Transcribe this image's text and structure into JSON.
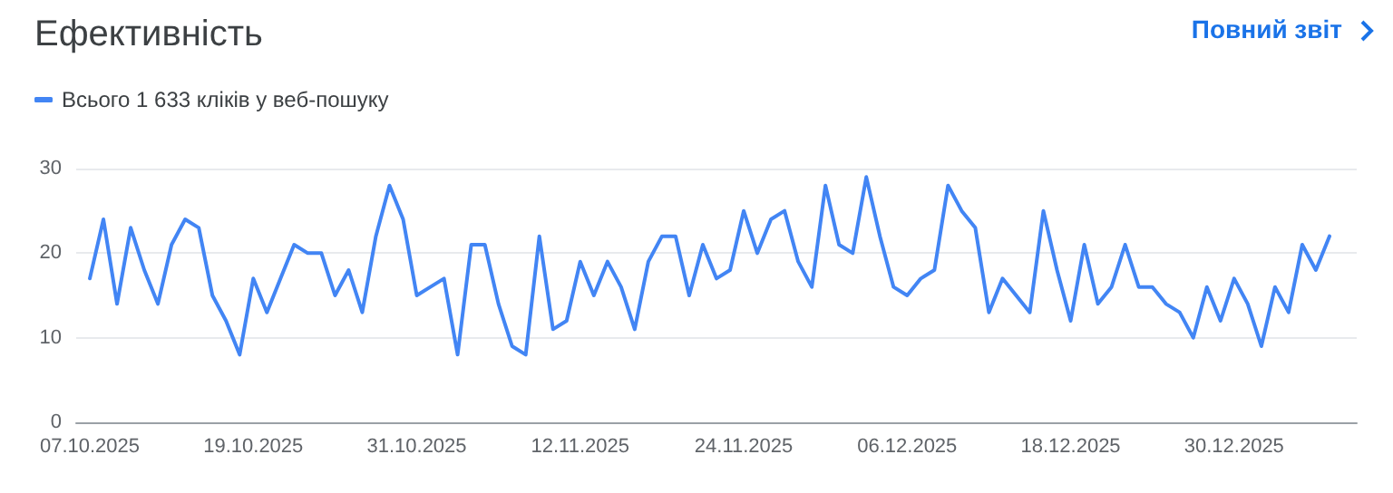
{
  "chart_data": {
    "type": "line",
    "title": "Ефективність",
    "annotations": [
      "Повний звіт"
    ],
    "x": [
      "2025-10-07",
      "2025-10-08",
      "2025-10-09",
      "2025-10-10",
      "2025-10-11",
      "2025-10-12",
      "2025-10-13",
      "2025-10-14",
      "2025-10-15",
      "2025-10-16",
      "2025-10-17",
      "2025-10-18",
      "2025-10-19",
      "2025-10-20",
      "2025-10-21",
      "2025-10-22",
      "2025-10-23",
      "2025-10-24",
      "2025-10-25",
      "2025-10-26",
      "2025-10-27",
      "2025-10-28",
      "2025-10-29",
      "2025-10-30",
      "2025-10-31",
      "2025-11-01",
      "2025-11-02",
      "2025-11-03",
      "2025-11-04",
      "2025-11-05",
      "2025-11-06",
      "2025-11-07",
      "2025-11-08",
      "2025-11-09",
      "2025-11-10",
      "2025-11-11",
      "2025-11-12",
      "2025-11-13",
      "2025-11-14",
      "2025-11-15",
      "2025-11-16",
      "2025-11-17",
      "2025-11-18",
      "2025-11-19",
      "2025-11-20",
      "2025-11-21",
      "2025-11-22",
      "2025-11-23",
      "2025-11-24",
      "2025-11-25",
      "2025-11-26",
      "2025-11-27",
      "2025-11-28",
      "2025-11-29",
      "2025-11-30",
      "2025-12-01",
      "2025-12-02",
      "2025-12-03",
      "2025-12-04",
      "2025-12-05",
      "2025-12-06",
      "2025-12-07",
      "2025-12-08",
      "2025-12-09",
      "2025-12-10",
      "2025-12-11",
      "2025-12-12",
      "2025-12-13",
      "2025-12-14",
      "2025-12-15",
      "2025-12-16",
      "2025-12-17",
      "2025-12-18",
      "2025-12-19",
      "2025-12-20",
      "2025-12-21",
      "2025-12-22",
      "2025-12-23",
      "2025-12-24",
      "2025-12-25",
      "2025-12-26",
      "2025-12-27",
      "2025-12-28",
      "2025-12-29",
      "2025-12-30",
      "2025-12-31",
      "2026-01-01",
      "2026-01-02",
      "2026-01-03",
      "2026-01-04",
      "2026-01-05",
      "2026-01-06"
    ],
    "series": [
      {
        "name": "Всього 1 633 кліків у веб-пошуку",
        "color": "#4285f4",
        "values": [
          17,
          24,
          14,
          23,
          18,
          14,
          21,
          24,
          23,
          15,
          12,
          8,
          17,
          13,
          17,
          21,
          20,
          20,
          15,
          18,
          13,
          22,
          28,
          24,
          15,
          16,
          17,
          8,
          21,
          21,
          14,
          9,
          8,
          22,
          11,
          12,
          19,
          15,
          19,
          16,
          11,
          19,
          22,
          22,
          15,
          21,
          17,
          18,
          25,
          20,
          24,
          25,
          19,
          16,
          28,
          21,
          20,
          29,
          22,
          16,
          15,
          17,
          18,
          28,
          25,
          23,
          13,
          17,
          15,
          13,
          25,
          18,
          12,
          21,
          14,
          16,
          21,
          16,
          16,
          14,
          13,
          10,
          16,
          12,
          17,
          14,
          9,
          16,
          13,
          21,
          18,
          22
        ]
      }
    ],
    "xlim": [
      "2025-10-06",
      "2026-01-08"
    ],
    "xticks": [
      {
        "value": "2025-10-07",
        "label": "07.10.2025"
      },
      {
        "value": "2025-10-19",
        "label": "19.10.2025"
      },
      {
        "value": "2025-10-31",
        "label": "31.10.2025"
      },
      {
        "value": "2025-11-12",
        "label": "12.11.2025"
      },
      {
        "value": "2025-11-24",
        "label": "24.11.2025"
      },
      {
        "value": "2025-12-06",
        "label": "06.12.2025"
      },
      {
        "value": "2025-12-18",
        "label": "18.12.2025"
      },
      {
        "value": "2025-12-30",
        "label": "30.12.2025"
      }
    ],
    "ylim": [
      0,
      30
    ],
    "yticks": [
      0,
      10,
      20,
      30
    ],
    "grid": "y",
    "legend": "top left",
    "marker": "none",
    "line_style": "solid"
  }
}
